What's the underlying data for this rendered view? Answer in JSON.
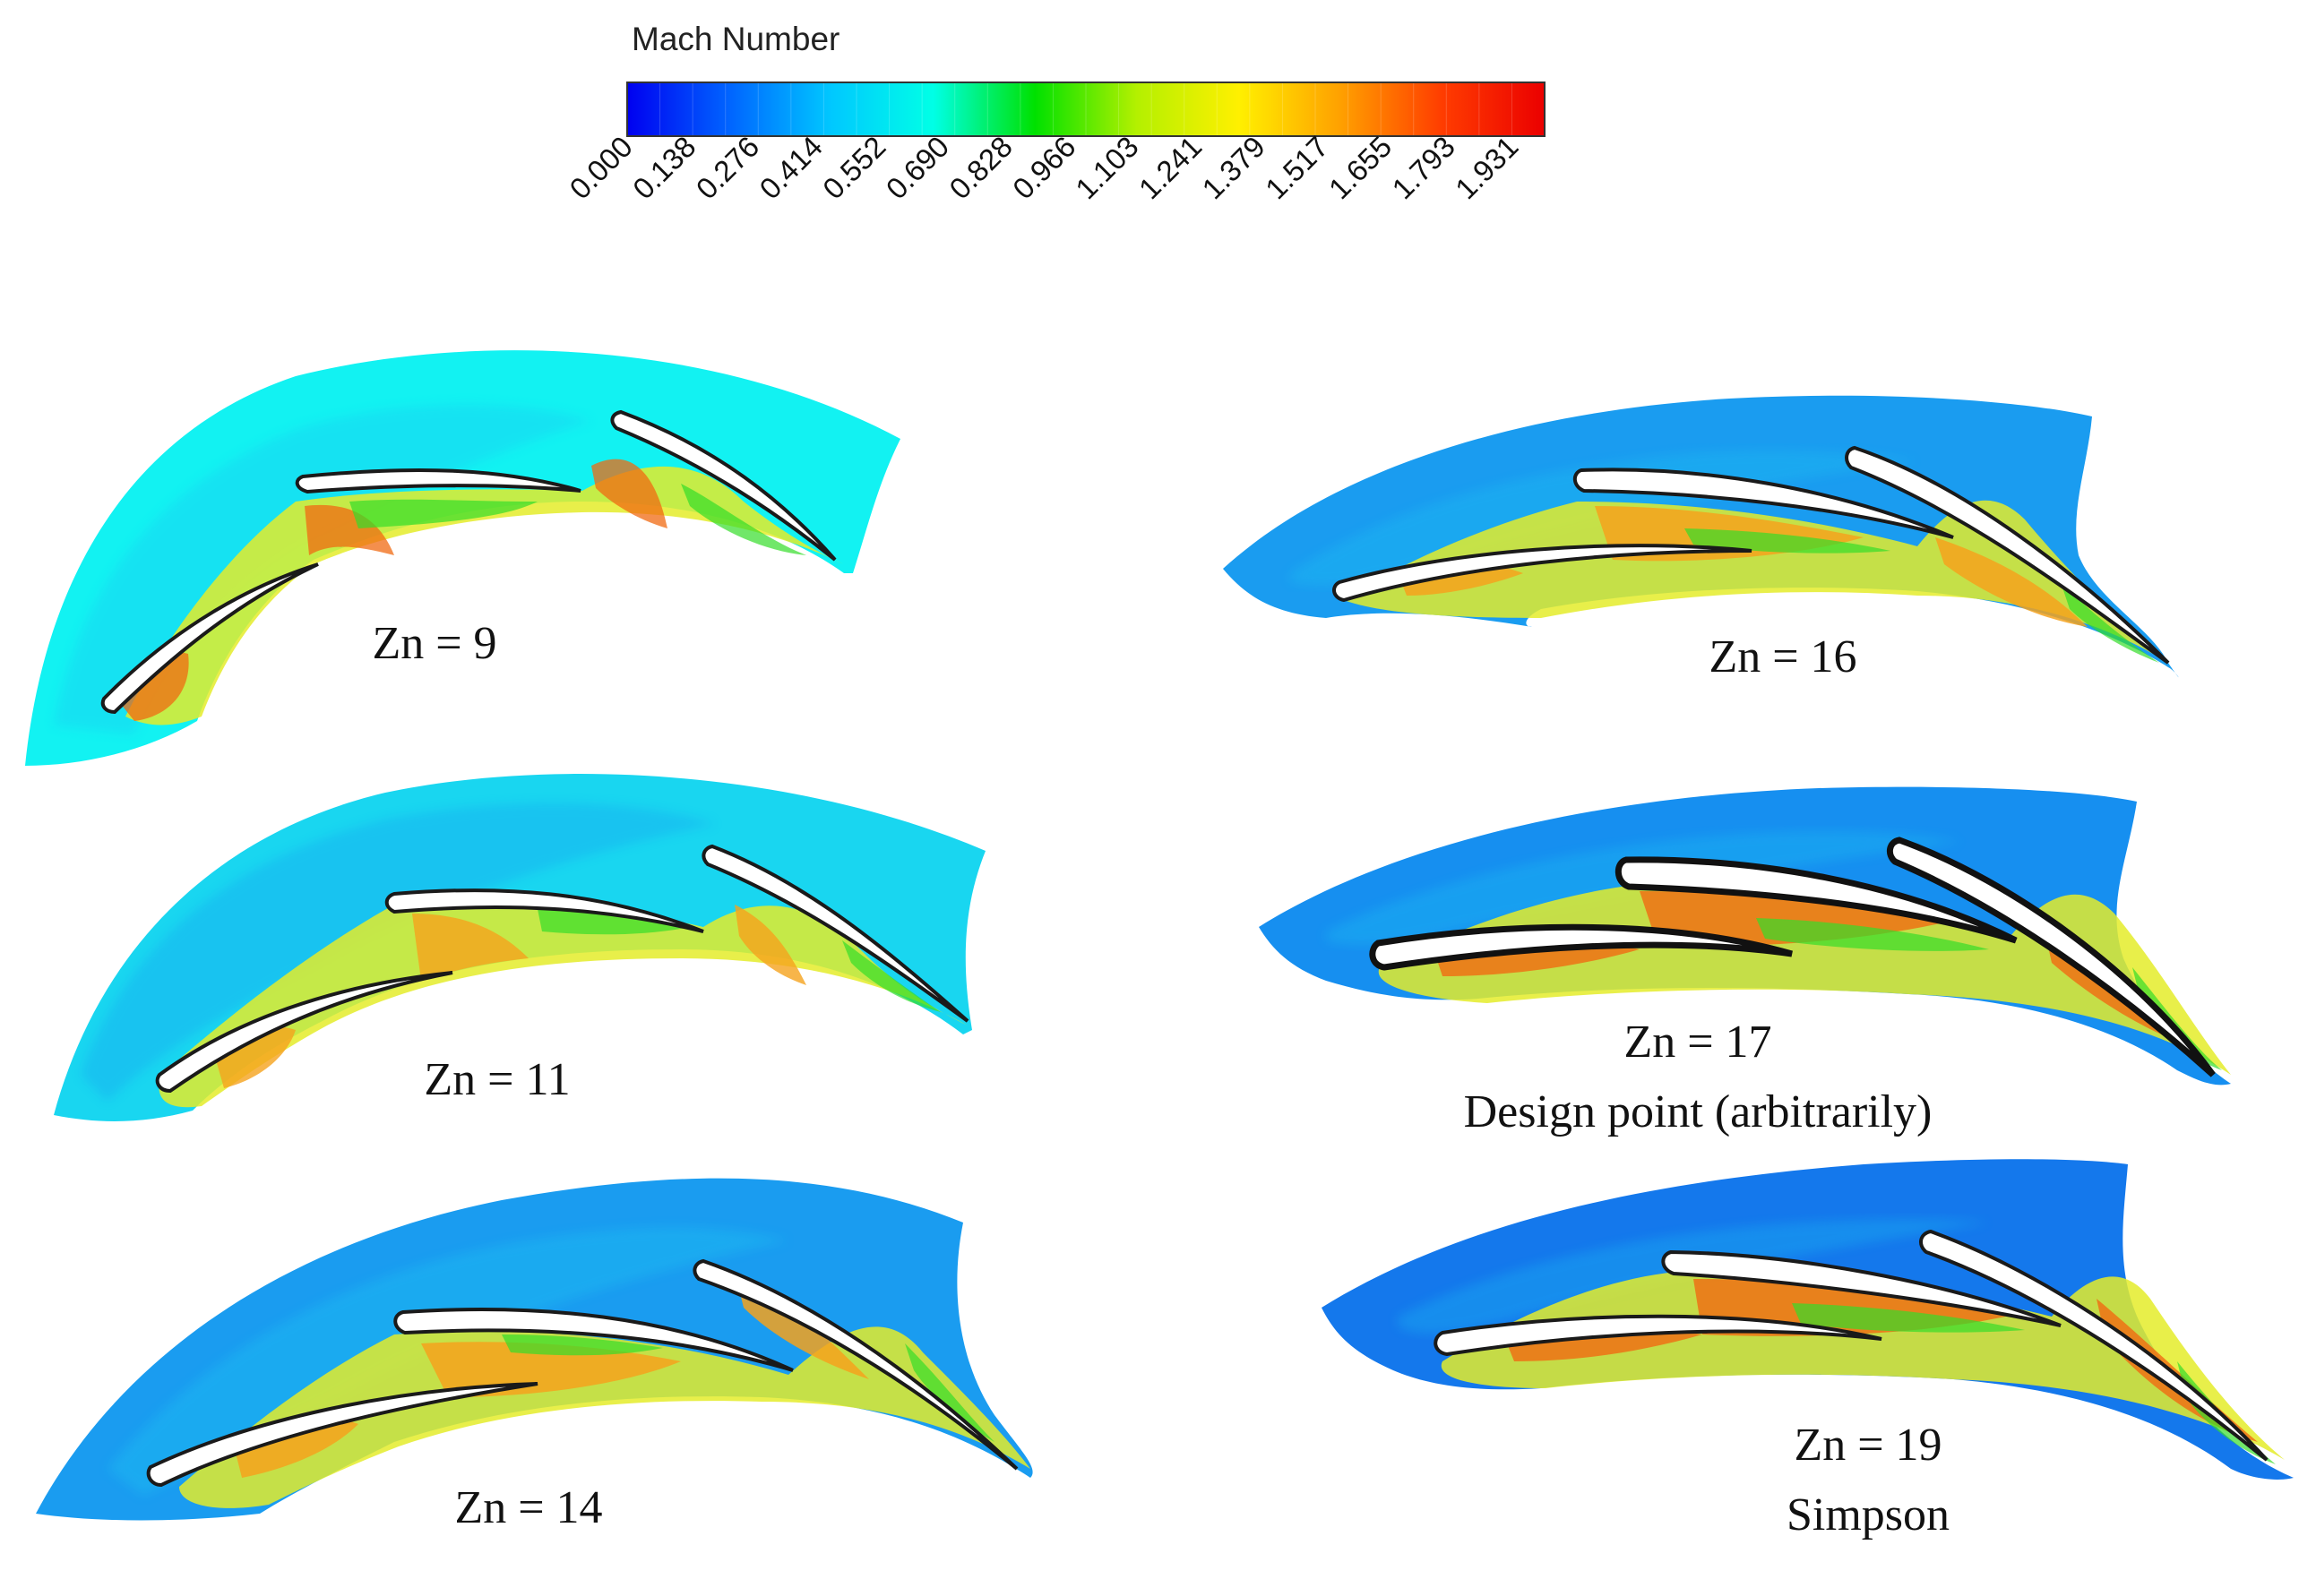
{
  "colorbar": {
    "title": "Mach Number",
    "ticks": [
      "0.000",
      "0.138",
      "0.276",
      "0.414",
      "0.552",
      "0.690",
      "0.828",
      "0.966",
      "1.103",
      "1.241",
      "1.379",
      "1.517",
      "1.655",
      "1.793",
      "1.931"
    ],
    "range": [
      0.0,
      2.0
    ],
    "colors": [
      "#0000f0",
      "#0064ff",
      "#00c8ff",
      "#00ffe6",
      "#00e100",
      "#b4f000",
      "#fff000",
      "#ffa000",
      "#ff3c00",
      "#eb0000"
    ]
  },
  "panels": [
    {
      "label": "Zn = 9",
      "subtitle": ""
    },
    {
      "label": "Zn = 11",
      "subtitle": ""
    },
    {
      "label": "Zn = 14",
      "subtitle": ""
    },
    {
      "label": "Zn = 16",
      "subtitle": ""
    },
    {
      "label": "Zn = 17",
      "subtitle": "Design point (arbitrarily)"
    },
    {
      "label": "Zn = 19",
      "subtitle": "Simpson"
    }
  ],
  "field_colors": {
    "inflow_light": "#12f2f2",
    "inflow_mid": "#1fc6f2",
    "inflow_dark": "#128cf0",
    "supersonic_low": "#34dd2a",
    "supersonic_mid": "#e4ec2a",
    "supersonic_high": "#f5a21d",
    "supersonic_peak": "#f06a12",
    "blade": "#ffffff",
    "blade_edge": "#1a1a1a"
  }
}
